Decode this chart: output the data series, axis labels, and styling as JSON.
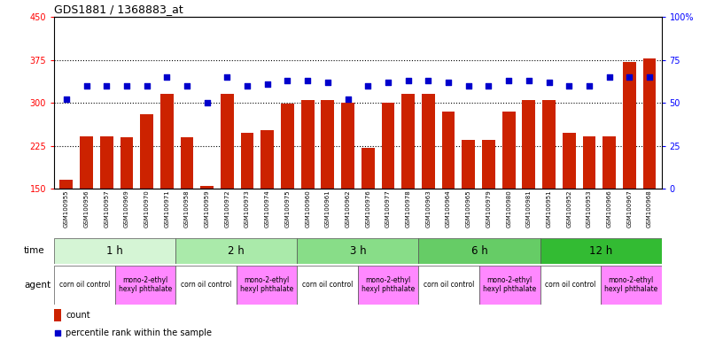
{
  "title": "GDS1881 / 1368883_at",
  "samples": [
    "GSM100955",
    "GSM100956",
    "GSM100957",
    "GSM100969",
    "GSM100970",
    "GSM100971",
    "GSM100958",
    "GSM100959",
    "GSM100972",
    "GSM100973",
    "GSM100974",
    "GSM100975",
    "GSM100960",
    "GSM100961",
    "GSM100962",
    "GSM100976",
    "GSM100977",
    "GSM100978",
    "GSM100963",
    "GSM100964",
    "GSM100965",
    "GSM100979",
    "GSM100980",
    "GSM100981",
    "GSM100951",
    "GSM100952",
    "GSM100953",
    "GSM100966",
    "GSM100967",
    "GSM100968"
  ],
  "counts": [
    165,
    242,
    242,
    240,
    280,
    315,
    240,
    155,
    315,
    248,
    252,
    298,
    305,
    305,
    301,
    222,
    301,
    315,
    315,
    285,
    235,
    235,
    285,
    305,
    305,
    248,
    242,
    242,
    372,
    378
  ],
  "percentiles": [
    52,
    60,
    60,
    60,
    60,
    65,
    60,
    50,
    65,
    60,
    61,
    63,
    63,
    62,
    52,
    60,
    62,
    63,
    63,
    62,
    60,
    60,
    63,
    63,
    62,
    60,
    60,
    65,
    65,
    65
  ],
  "ylim_left": [
    150,
    450
  ],
  "ylim_right": [
    0,
    100
  ],
  "yticks_left": [
    150,
    225,
    300,
    375,
    450
  ],
  "yticks_right": [
    0,
    25,
    50,
    75,
    100
  ],
  "bar_color": "#cc2200",
  "dot_color": "#0000cc",
  "time_groups": [
    {
      "label": "1 h",
      "start": 0,
      "end": 6,
      "color": "#d5f5d5"
    },
    {
      "label": "2 h",
      "start": 6,
      "end": 12,
      "color": "#aaeaaa"
    },
    {
      "label": "3 h",
      "start": 12,
      "end": 18,
      "color": "#88dd88"
    },
    {
      "label": "6 h",
      "start": 18,
      "end": 24,
      "color": "#66cc66"
    },
    {
      "label": "12 h",
      "start": 24,
      "end": 30,
      "color": "#33bb33"
    }
  ],
  "agent_groups": [
    {
      "label": "corn oil control",
      "start": 0,
      "end": 3,
      "color": "#ffffff"
    },
    {
      "label": "mono-2-ethyl\nhexyl phthalate",
      "start": 3,
      "end": 6,
      "color": "#ff88ff"
    },
    {
      "label": "corn oil control",
      "start": 6,
      "end": 9,
      "color": "#ffffff"
    },
    {
      "label": "mono-2-ethyl\nhexyl phthalate",
      "start": 9,
      "end": 12,
      "color": "#ff88ff"
    },
    {
      "label": "corn oil control",
      "start": 12,
      "end": 15,
      "color": "#ffffff"
    },
    {
      "label": "mono-2-ethyl\nhexyl phthalate",
      "start": 15,
      "end": 18,
      "color": "#ff88ff"
    },
    {
      "label": "corn oil control",
      "start": 18,
      "end": 21,
      "color": "#ffffff"
    },
    {
      "label": "mono-2-ethyl\nhexyl phthalate",
      "start": 21,
      "end": 24,
      "color": "#ff88ff"
    },
    {
      "label": "corn oil control",
      "start": 24,
      "end": 27,
      "color": "#ffffff"
    },
    {
      "label": "mono-2-ethyl\nhexyl phthalate",
      "start": 27,
      "end": 30,
      "color": "#ff88ff"
    }
  ],
  "legend_count_color": "#cc2200",
  "legend_dot_color": "#0000cc"
}
